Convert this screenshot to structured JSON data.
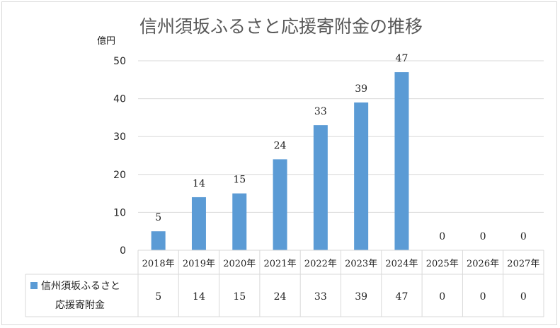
{
  "chart_data": {
    "type": "bar",
    "title": "信州須坂ふるさと応援寄附金の推移",
    "ylabel": "億円",
    "xlabel": "",
    "categories": [
      "2018年",
      "2019年",
      "2020年",
      "2021年",
      "2022年",
      "2023年",
      "2024年",
      "2025年",
      "2026年",
      "2027年"
    ],
    "series": [
      {
        "name": "信州須坂ふるさと応援寄附金",
        "values": [
          5,
          14,
          15,
          24,
          33,
          39,
          47,
          0,
          0,
          0
        ]
      }
    ],
    "yticks": [
      "0",
      "10",
      "20",
      "30",
      "40",
      "50"
    ],
    "ylim": [
      0,
      50
    ],
    "grid": true,
    "data_table": true,
    "legend_lines": [
      "信州須坂ふるさと",
      "応援寄附金"
    ],
    "bar_color": "#5b9bd5",
    "grid_color": "#d9d9d9"
  }
}
